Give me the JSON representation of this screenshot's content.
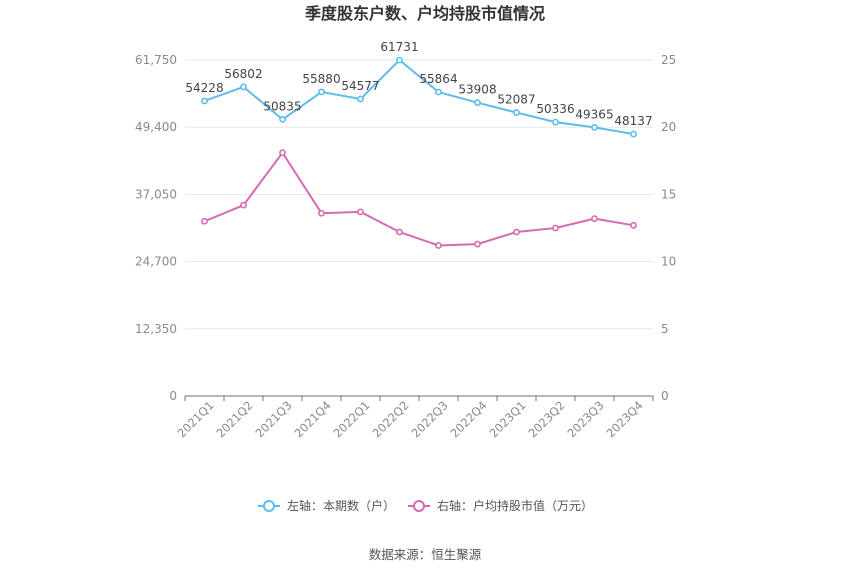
{
  "title": "季度股东户数、户均持股市值情况",
  "source": "数据来源：恒生聚源",
  "colors": {
    "left": "#5bbde8",
    "right": "#d46bb4"
  },
  "chart_data": {
    "type": "line",
    "title": "季度股东户数、户均持股市值情况",
    "categories": [
      "2021Q1",
      "2021Q2",
      "2021Q3",
      "2021Q4",
      "2022Q1",
      "2022Q2",
      "2022Q3",
      "2022Q4",
      "2023Q1",
      "2023Q2",
      "2023Q3",
      "2023Q4"
    ],
    "left_axis": {
      "ticks": [
        "0",
        "12,350",
        "24,700",
        "37,050",
        "49,400",
        "61,750"
      ],
      "range": [
        0,
        61750
      ]
    },
    "right_axis": {
      "ticks": [
        "0",
        "5",
        "10",
        "15",
        "20",
        "25"
      ],
      "range": [
        0,
        25
      ]
    },
    "grid": true,
    "legend_position": "bottom",
    "series": [
      {
        "name": "左轴：本期数（户）",
        "axis": "left",
        "values": [
          54228,
          56802,
          50835,
          55880,
          54577,
          61731,
          55864,
          53908,
          52087,
          50336,
          49365,
          48137
        ],
        "labels": [
          "54228",
          "56802",
          "50835",
          "55880",
          "54577",
          "61731",
          "55864",
          "53908",
          "52087",
          "50336",
          "49365",
          "48137"
        ]
      },
      {
        "name": "右轴：户均持股市值（万元）",
        "axis": "right",
        "values": [
          13.0,
          14.2,
          18.1,
          13.6,
          13.7,
          12.2,
          11.2,
          11.3,
          12.2,
          12.5,
          13.2,
          12.7
        ]
      }
    ]
  }
}
